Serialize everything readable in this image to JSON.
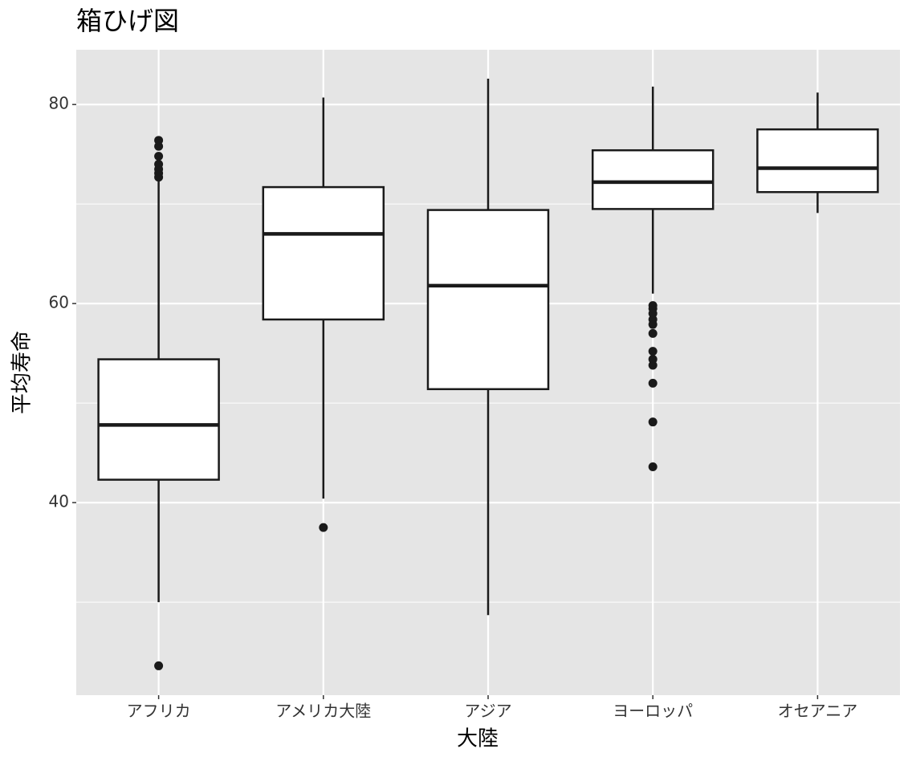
{
  "chart_data": {
    "type": "boxplot",
    "title": "箱ひげ図",
    "x_label": "大陸",
    "y_label": "平均寿命",
    "categories": [
      "アフリカ",
      "アメリカ大陸",
      "アジア",
      "ヨーロッパ",
      "オセアニア"
    ],
    "boxes": [
      {
        "whisker_low": 30.0,
        "q1": 42.3,
        "median": 47.8,
        "q3": 54.4,
        "whisker_high": 72.3,
        "outliers": [
          23.6,
          72.7,
          73.1,
          73.5,
          74.0,
          74.8,
          75.8,
          76.4
        ]
      },
      {
        "whisker_low": 40.4,
        "q1": 58.4,
        "median": 67.0,
        "q3": 71.7,
        "whisker_high": 80.7,
        "outliers": [
          37.5
        ]
      },
      {
        "whisker_low": 28.7,
        "q1": 51.4,
        "median": 61.8,
        "q3": 69.4,
        "whisker_high": 82.6,
        "outliers": []
      },
      {
        "whisker_low": 61.0,
        "q1": 69.5,
        "median": 72.2,
        "q3": 75.4,
        "whisker_high": 81.8,
        "outliers": [
          43.6,
          48.1,
          52.0,
          53.8,
          54.4,
          55.2,
          57.0,
          57.9,
          58.4,
          59.0,
          59.5,
          59.8
        ]
      },
      {
        "whisker_low": 69.1,
        "q1": 71.2,
        "median": 73.6,
        "q3": 77.5,
        "whisker_high": 81.2,
        "outliers": []
      }
    ],
    "ylim": [
      20.65,
      85.5
    ],
    "yticks": [
      40,
      60,
      80
    ],
    "minor_yticks": [
      30,
      50,
      70
    ],
    "grid": true,
    "panel_color": "#e5e5e5",
    "box_fill": "#ffffff",
    "line_color": "#1a1a1a"
  }
}
